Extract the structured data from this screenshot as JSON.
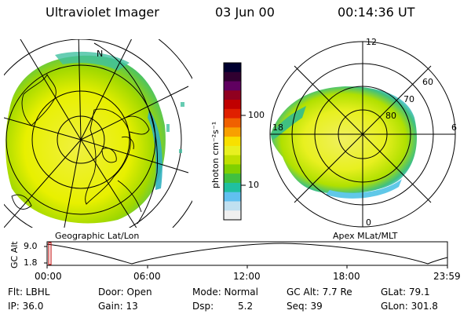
{
  "header": {
    "title": "Ultraviolet Imager",
    "date": "03 Jun 00",
    "time": "00:14:36 UT"
  },
  "left_panel": {
    "caption": "Geographic Lat/Lon"
  },
  "right_panel": {
    "caption": "Apex MLat/MLT",
    "mlt_labels": [
      "12",
      "18",
      "6",
      "0"
    ],
    "lat_labels": [
      "60",
      "70",
      "80"
    ]
  },
  "colorbar": {
    "label": "photon cm⁻²s⁻¹",
    "ticks": [
      "100",
      "10"
    ],
    "colors": [
      "#000030",
      "#300030",
      "#600060",
      "#900020",
      "#c00000",
      "#e02000",
      "#f06000",
      "#f8a000",
      "#f8e000",
      "#e8f020",
      "#c0e000",
      "#80d000",
      "#40c040",
      "#20c0a0",
      "#60c0f0",
      "#c0e0f0",
      "#f0f0f0"
    ]
  },
  "altitude_strip": {
    "axis_title": "GC Alt",
    "y_ticks": [
      "9.0",
      "1.8"
    ],
    "time_ticks": [
      "00:00",
      "06:00",
      "12:00",
      "18:00",
      "23:59"
    ]
  },
  "footer": {
    "flt": "Flt: LBHL",
    "door": "Door: Open",
    "mode": "Mode: Normal",
    "gc_alt": "GC Alt: 7.7 Re",
    "glat": "GLat: 79.1",
    "ip": "IP: 36.0",
    "gain": "Gain: 13",
    "dsp_label": "Dsp:",
    "dsp_value": "5.2",
    "seq": "Seq: 39",
    "glon": "GLon: 301.8"
  },
  "map_labels": {
    "pole_marker": "N"
  }
}
